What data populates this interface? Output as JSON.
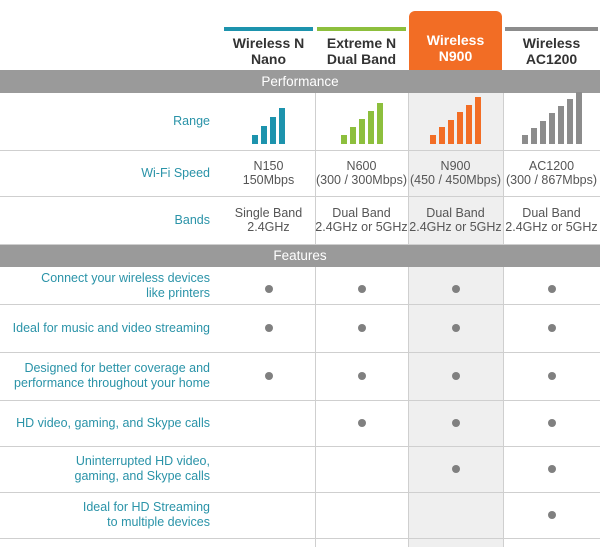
{
  "colors": {
    "teal": "#1d93ad",
    "green": "#8dbf3d",
    "orange": "#f26d25",
    "gray": "#8c8c8c",
    "label_text": "#2a93a8",
    "section_bar": "#9a9a9a",
    "highlight_column": "#efefef"
  },
  "products": [
    {
      "name": "Wireless N\nNano",
      "accent": "#1d93ad",
      "highlighted": false,
      "range_bars": 4
    },
    {
      "name": "Extreme N\nDual Band",
      "accent": "#8dbf3d",
      "highlighted": false,
      "range_bars": 5
    },
    {
      "name": "Wireless\nN900",
      "accent": "#f26d25",
      "highlighted": true,
      "range_bars": 6
    },
    {
      "name": "Wireless\nAC1200",
      "accent": "#8c8c8c",
      "highlighted": false,
      "range_bars": 7
    }
  ],
  "sections": {
    "performance": "Performance",
    "features": "Features"
  },
  "performance_rows": {
    "range_label": "Range",
    "wifi_speed_label": "Wi-Fi Speed",
    "wifi_speed": [
      "N150\n150Mbps",
      "N600\n(300 / 300Mbps)",
      "N900\n(450 / 450Mbps)",
      "AC1200\n(300 / 867Mbps)"
    ],
    "bands_label": "Bands",
    "bands": [
      "Single Band\n2.4GHz",
      "Dual Band\n2.4GHz or 5GHz",
      "Dual Band\n2.4GHz or 5GHz",
      "Dual Band\n2.4GHz or 5GHz"
    ]
  },
  "features": [
    {
      "label": "Connect your wireless devices\nlike printers",
      "supported": [
        true,
        true,
        true,
        true
      ]
    },
    {
      "label": "Ideal for music and video streaming",
      "supported": [
        true,
        true,
        true,
        true
      ]
    },
    {
      "label": "Designed for better coverage and\nperformance throughout your home",
      "supported": [
        true,
        true,
        true,
        true
      ]
    },
    {
      "label": "HD video, gaming, and Skype calls",
      "supported": [
        false,
        true,
        true,
        true
      ]
    },
    {
      "label": "Uninterrupted HD video,\ngaming, and Skype calls",
      "supported": [
        false,
        false,
        true,
        true
      ]
    },
    {
      "label": "Ideal for HD Streaming\nto multiple devices",
      "supported": [
        false,
        false,
        false,
        true
      ]
    }
  ]
}
